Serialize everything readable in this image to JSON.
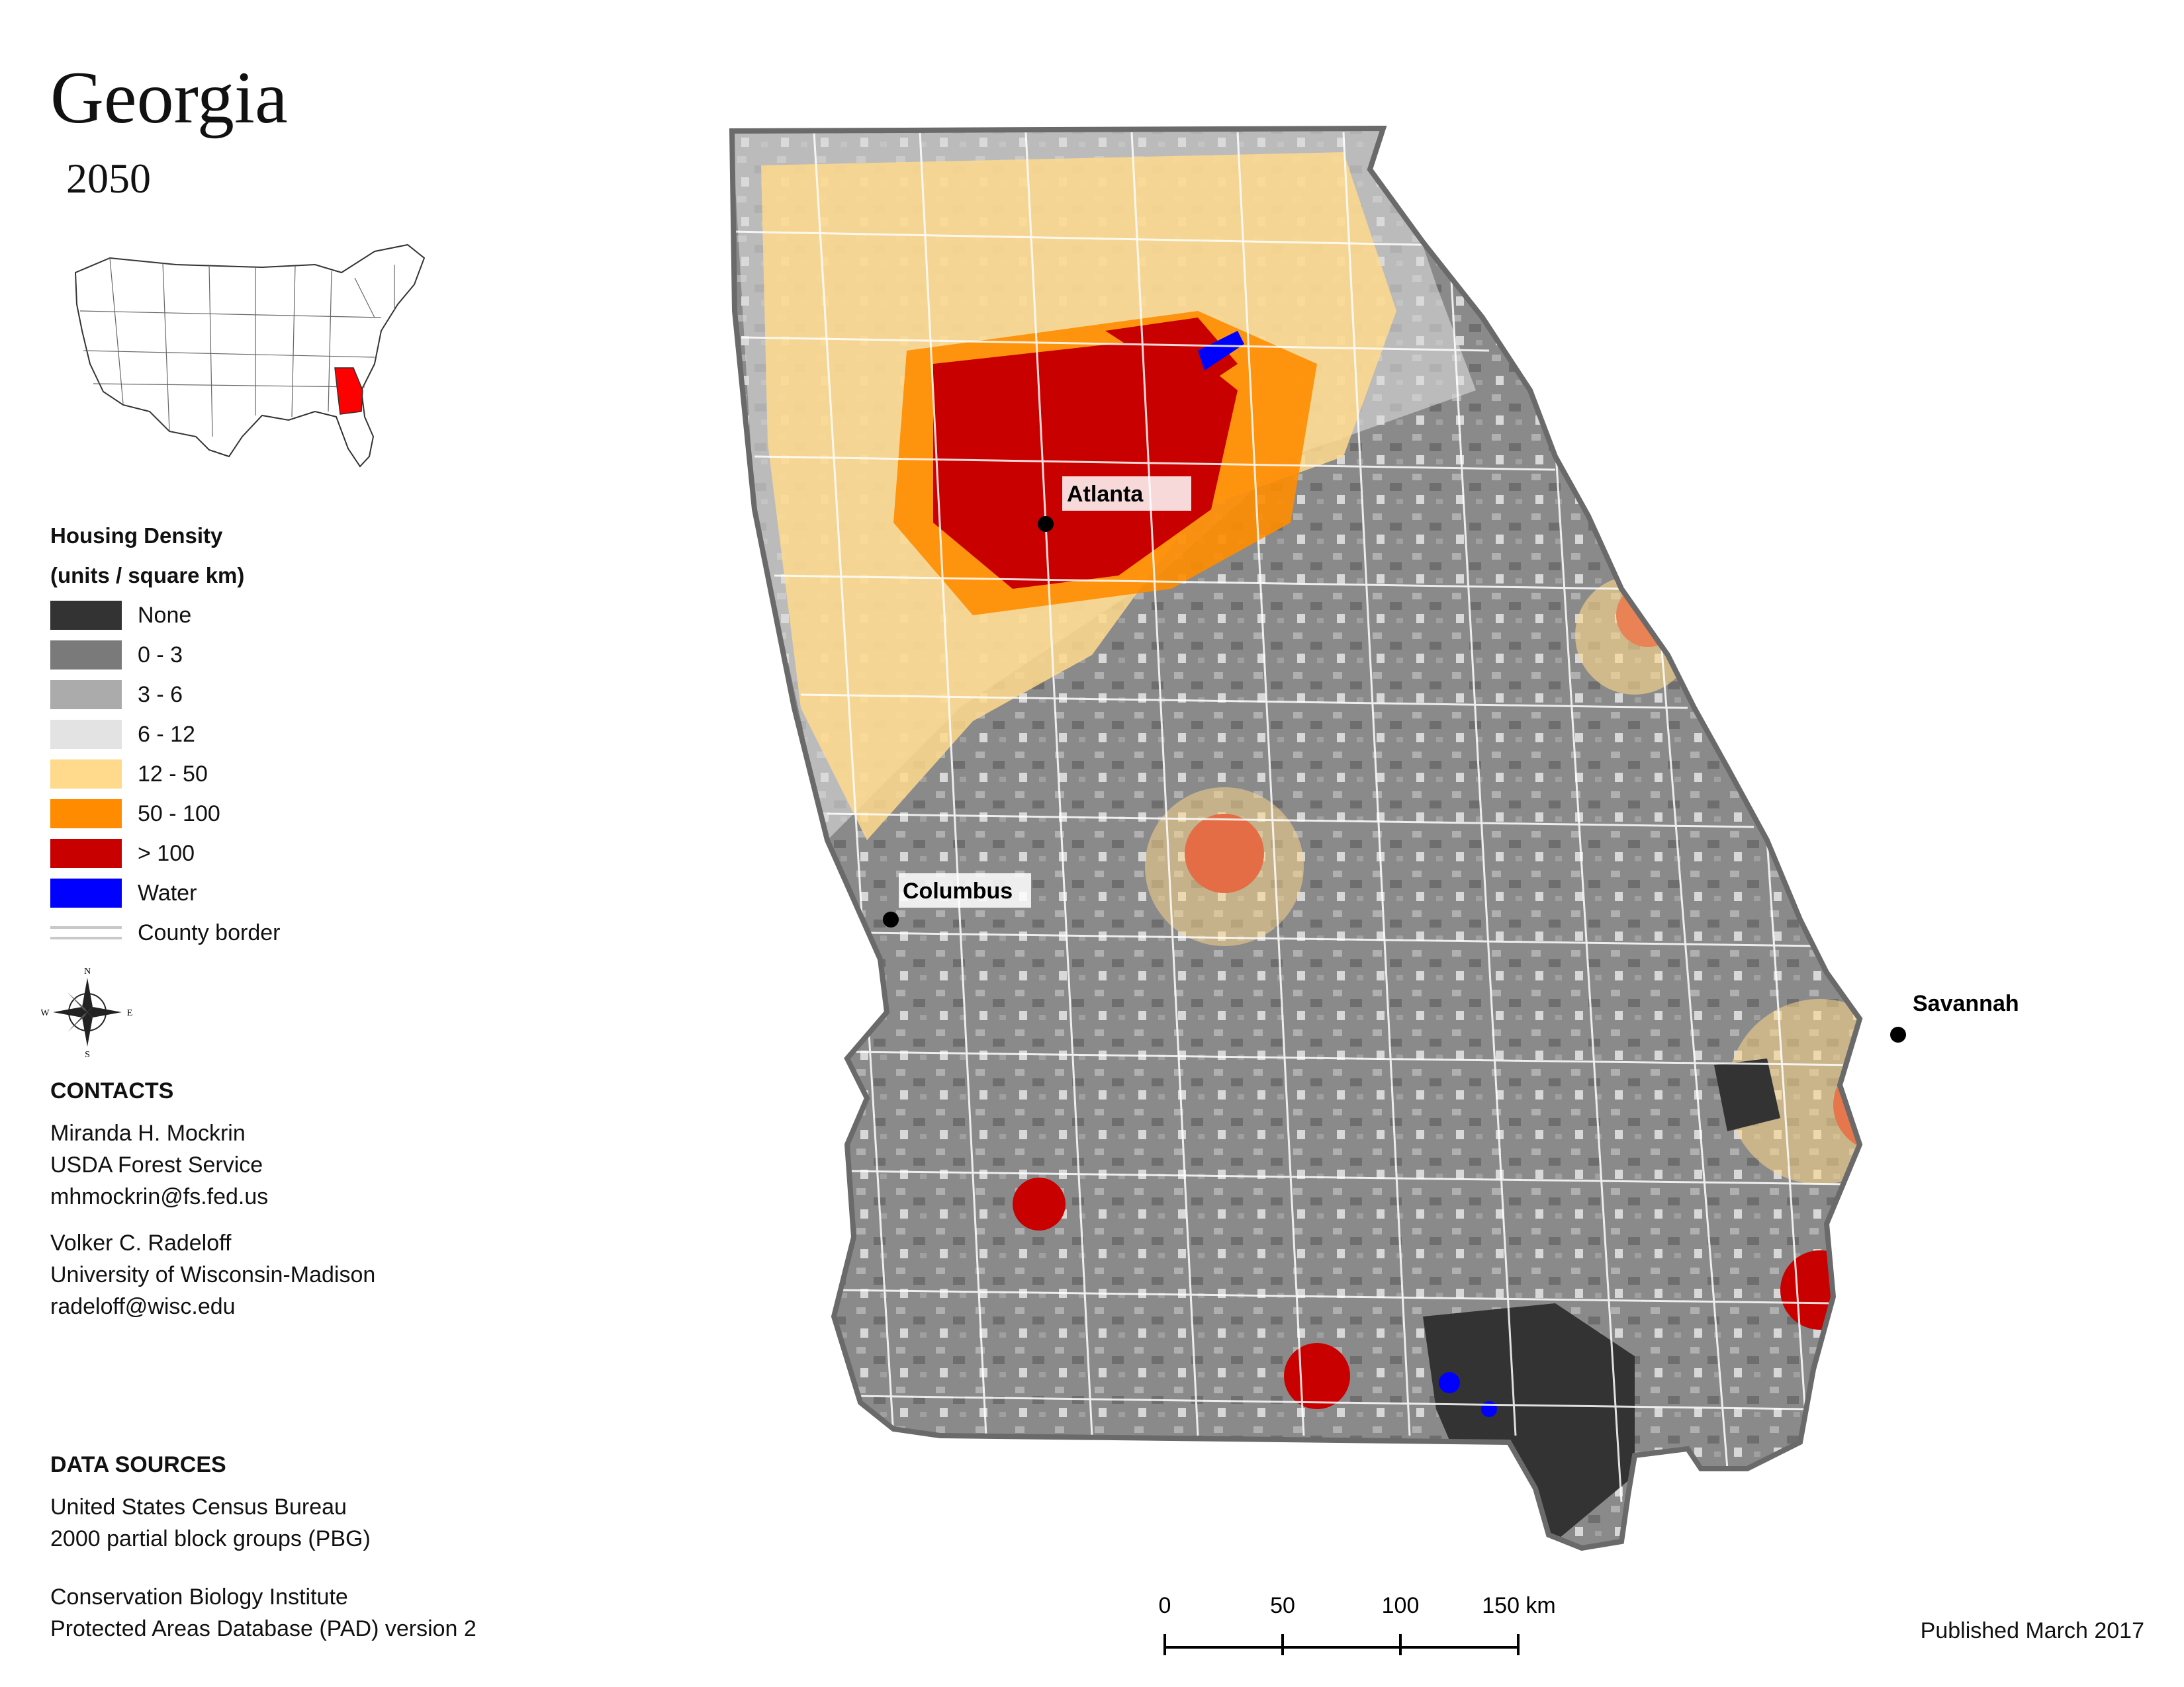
{
  "title": "Georgia",
  "year": "2050",
  "legend": {
    "title_line1": "Housing Density",
    "title_line2": "(units / square km)",
    "items": [
      {
        "label": "None",
        "color": "#333333"
      },
      {
        "label": "0 - 3",
        "color": "#7a7a7a"
      },
      {
        "label": "3 - 6",
        "color": "#ababab"
      },
      {
        "label": "6 - 12",
        "color": "#e3e3e3"
      },
      {
        "label": "12 - 50",
        "color": "#ffd98c"
      },
      {
        "label": "50 - 100",
        "color": "#ff8c00"
      },
      {
        "label": "> 100",
        "color": "#c80000"
      },
      {
        "label": "Water",
        "color": "#0000ff"
      }
    ],
    "county_border_label": "County border"
  },
  "compass": {
    "n": "N",
    "s": "S",
    "e": "E",
    "w": "W"
  },
  "contacts": {
    "heading": "CONTACTS",
    "people": [
      {
        "name": "Miranda H. Mockrin",
        "org": "USDA Forest Service",
        "email": "mhmockrin@fs.fed.us"
      },
      {
        "name": "Volker C. Radeloff",
        "org": "University of Wisconsin-Madison",
        "email": "radeloff@wisc.edu"
      }
    ]
  },
  "data_sources": {
    "heading": "DATA SOURCES",
    "lines": [
      "United States Census Bureau",
      "2000 partial block groups (PBG)",
      "Conservation Biology Institute",
      "Protected Areas Database (PAD) version 2"
    ]
  },
  "cities": [
    "Atlanta",
    "Columbus",
    "Savannah"
  ],
  "scale_bar": {
    "ticks": [
      "0",
      "50",
      "100",
      "150 km"
    ]
  },
  "published": "Published March 2017",
  "highlight_state_color": "#ff0000"
}
